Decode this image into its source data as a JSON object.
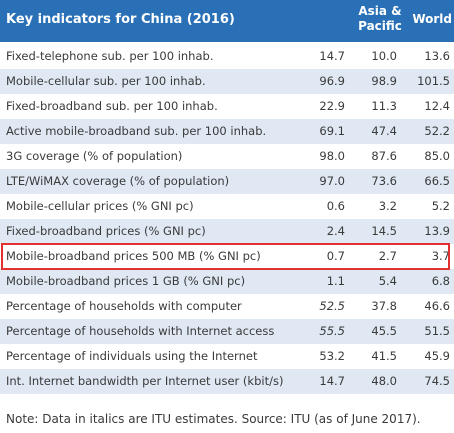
{
  "header": {
    "title": "Key indicators for China (2016)",
    "col_asia_line1": "Asia &",
    "col_asia_line2": "Pacific",
    "col_world": "World"
  },
  "rows": [
    {
      "label": "Fixed-telephone sub. per 100 inhab.",
      "china": "14.7",
      "asia": "10.0",
      "world": "13.6",
      "china_italic": false
    },
    {
      "label": "Mobile-cellular sub. per 100 inhab.",
      "china": "96.9",
      "asia": "98.9",
      "world": "101.5",
      "china_italic": false
    },
    {
      "label": "Fixed-broadband sub. per 100 inhab.",
      "china": "22.9",
      "asia": "11.3",
      "world": "12.4",
      "china_italic": false
    },
    {
      "label": "Active mobile-broadband sub. per 100 inhab.",
      "china": "69.1",
      "asia": "47.4",
      "world": "52.2",
      "china_italic": false
    },
    {
      "label": "3G coverage (% of population)",
      "china": "98.0",
      "asia": "87.6",
      "world": "85.0",
      "china_italic": false
    },
    {
      "label": "LTE/WiMAX coverage (% of population)",
      "china": "97.0",
      "asia": "73.6",
      "world": "66.5",
      "china_italic": false
    },
    {
      "label": "Mobile-cellular prices (% GNI pc)",
      "china": "0.6",
      "asia": "3.2",
      "world": "5.2",
      "china_italic": false
    },
    {
      "label": "Fixed-broadband prices (% GNI pc)",
      "china": "2.4",
      "asia": "14.5",
      "world": "13.9",
      "china_italic": false
    },
    {
      "label": "Mobile-broadband prices 500 MB (% GNI pc)",
      "china": "0.7",
      "asia": "2.7",
      "world": "3.7",
      "china_italic": false
    },
    {
      "label": "Mobile-broadband prices 1 GB (% GNI pc)",
      "china": "1.1",
      "asia": "5.4",
      "world": "6.8",
      "china_italic": false
    },
    {
      "label": "Percentage of households with computer",
      "china": "52.5",
      "asia": "37.8",
      "world": "46.6",
      "china_italic": true
    },
    {
      "label": "Percentage of households with Internet access",
      "china": "55.5",
      "asia": "45.5",
      "world": "51.5",
      "china_italic": true
    },
    {
      "label": "Percentage of individuals using the Internet",
      "china": "53.2",
      "asia": "41.5",
      "world": "45.9",
      "china_italic": false
    },
    {
      "label": "Int. Internet bandwidth per Internet user (kbit/s)",
      "china": "14.7",
      "asia": "48.0",
      "world": "74.5",
      "china_italic": false
    }
  ],
  "highlighted_row_index": 8,
  "highlight_color": "#e0302f",
  "header_color": "#2970b6",
  "shade_color": "#dfe8f3",
  "note": "Note: Data in italics are ITU estimates. Source: ITU (as of June 2017)."
}
